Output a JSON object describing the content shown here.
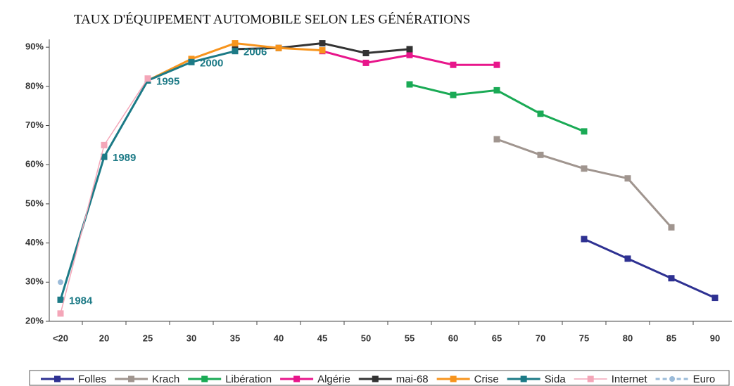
{
  "chart_data": {
    "type": "line",
    "title": "TAUX D'ÉQUIPEMENT AUTOMOBILE SELON LES GÉNÉRATIONS",
    "categories": [
      "<20",
      "20",
      "25",
      "30",
      "35",
      "40",
      "45",
      "50",
      "55",
      "60",
      "65",
      "70",
      "75",
      "80",
      "85",
      "90"
    ],
    "ylim": [
      20,
      92
    ],
    "yticks": [
      {
        "value": 20,
        "label": "20%"
      },
      {
        "value": 30,
        "label": "30%"
      },
      {
        "value": 40,
        "label": "40%"
      },
      {
        "value": 50,
        "label": "50%"
      },
      {
        "value": 60,
        "label": "60%"
      },
      {
        "value": 70,
        "label": "70%"
      },
      {
        "value": 80,
        "label": "80%"
      },
      {
        "value": 90,
        "label": "90%"
      }
    ],
    "legend": "bottom",
    "series": [
      {
        "name": "Folles",
        "color": "#2e3192",
        "values": [
          null,
          null,
          null,
          null,
          null,
          null,
          null,
          null,
          null,
          null,
          null,
          null,
          41,
          36,
          31,
          26
        ]
      },
      {
        "name": "Krach",
        "color": "#a0958f",
        "values": [
          null,
          null,
          null,
          null,
          null,
          null,
          null,
          null,
          null,
          null,
          66.5,
          62.5,
          59,
          56.5,
          44,
          null
        ]
      },
      {
        "name": "Libération",
        "color": "#1aaa55",
        "values": [
          null,
          null,
          null,
          null,
          null,
          null,
          null,
          null,
          80.5,
          77.8,
          79,
          73,
          68.5,
          null,
          null,
          null
        ]
      },
      {
        "name": "Algérie",
        "color": "#e8168b",
        "values": [
          null,
          null,
          null,
          null,
          null,
          null,
          89,
          86,
          88,
          85.5,
          85.5,
          null,
          null,
          null,
          null,
          null
        ]
      },
      {
        "name": "mai-68",
        "color": "#333333",
        "values": [
          null,
          null,
          null,
          null,
          89.5,
          89.8,
          91,
          88.5,
          89.5,
          null,
          null,
          null,
          null,
          null,
          null,
          null
        ]
      },
      {
        "name": "Crise",
        "color": "#f7941d",
        "values": [
          null,
          null,
          81.5,
          87,
          91,
          89.8,
          89.2,
          null,
          null,
          null,
          null,
          null,
          null,
          null,
          null,
          null
        ]
      },
      {
        "name": "Sida",
        "color": "#1c7a86",
        "values": [
          25.5,
          62,
          81.5,
          86.2,
          89,
          null,
          null,
          null,
          null,
          null,
          null,
          null,
          null,
          null,
          null,
          null
        ],
        "annotations": [
          "1984",
          "1989",
          "1995",
          "2000",
          "2006",
          null,
          null,
          null,
          null,
          null,
          null,
          null,
          null,
          null,
          null,
          null
        ]
      },
      {
        "name": "Internet",
        "color": "#f4a6b8",
        "thin": true,
        "values": [
          22,
          65,
          82,
          null,
          null,
          null,
          null,
          null,
          null,
          null,
          null,
          null,
          null,
          null,
          null,
          null
        ]
      },
      {
        "name": "Euro",
        "color": "#9bbbd9",
        "dashed": true,
        "marker": "circle",
        "values": [
          30,
          null,
          null,
          null,
          null,
          null,
          null,
          null,
          null,
          null,
          null,
          null,
          null,
          null,
          null,
          null
        ]
      }
    ]
  }
}
